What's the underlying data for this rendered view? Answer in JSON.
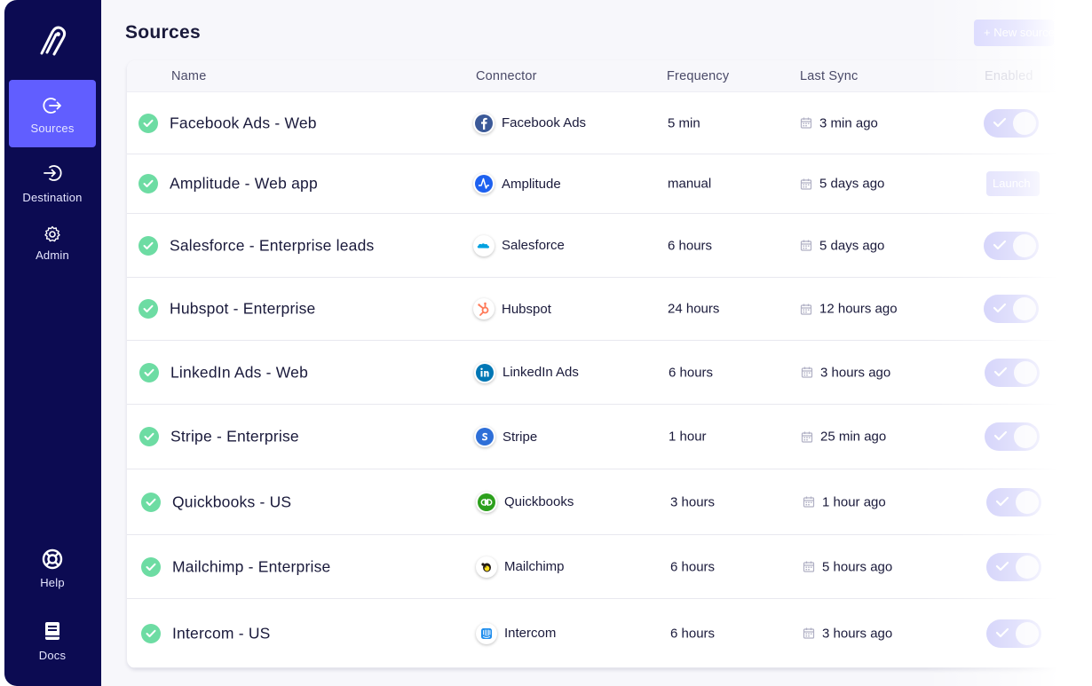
{
  "sidebar": {
    "items": [
      {
        "label": "Sources",
        "icon": "sources-icon",
        "active": true
      },
      {
        "label": "Destination",
        "icon": "destination-icon",
        "active": false
      },
      {
        "label": "Admin",
        "icon": "gear-icon",
        "active": false
      }
    ],
    "bottom_items": [
      {
        "label": "Help",
        "icon": "lifebuoy-icon"
      },
      {
        "label": "Docs",
        "icon": "book-icon"
      }
    ]
  },
  "page": {
    "title": "Sources",
    "new_button": "+ New source"
  },
  "table": {
    "headers": {
      "name": "Name",
      "connector": "Connector",
      "frequency": "Frequency",
      "last_sync": "Last Sync",
      "enabled": "Enabled"
    },
    "rows": [
      {
        "name": "Facebook Ads - Web",
        "connector": "Facebook Ads",
        "frequency": "5 min",
        "last_sync": "3 min ago",
        "action": "toggle"
      },
      {
        "name": "Amplitude - Web app",
        "connector": "Amplitude",
        "frequency": "manual",
        "last_sync": "5 days ago",
        "action": "launch",
        "action_label": "Launch"
      },
      {
        "name": "Salesforce - Enterprise leads",
        "connector": "Salesforce",
        "frequency": "6 hours",
        "last_sync": "5 days ago",
        "action": "toggle"
      },
      {
        "name": "Hubspot - Enterprise",
        "connector": "Hubspot",
        "frequency": "24 hours",
        "last_sync": "12 hours ago",
        "action": "toggle"
      },
      {
        "name": "LinkedIn Ads - Web",
        "connector": "LinkedIn Ads",
        "frequency": "6 hours",
        "last_sync": "3 hours ago",
        "action": "toggle"
      },
      {
        "name": "Stripe - Enterprise",
        "connector": "Stripe",
        "frequency": "1 hour",
        "last_sync": "25 min ago",
        "action": "toggle"
      },
      {
        "name": "Quickbooks - US",
        "connector": "Quickbooks",
        "frequency": "3 hours",
        "last_sync": "1 hour ago",
        "action": "toggle"
      },
      {
        "name": "Mailchimp - Enterprise",
        "connector": "Mailchimp",
        "frequency": "6 hours",
        "last_sync": "5 hours ago",
        "action": "toggle"
      },
      {
        "name": "Intercom - US",
        "connector": "Intercom",
        "frequency": "6 hours",
        "last_sync": "3 hours ago",
        "action": "toggle"
      }
    ]
  },
  "colors": {
    "sidebar_bg": "#0c0b52",
    "accent": "#615eff",
    "success": "#6ddca3",
    "toggle_on": "#b5b3f7"
  }
}
